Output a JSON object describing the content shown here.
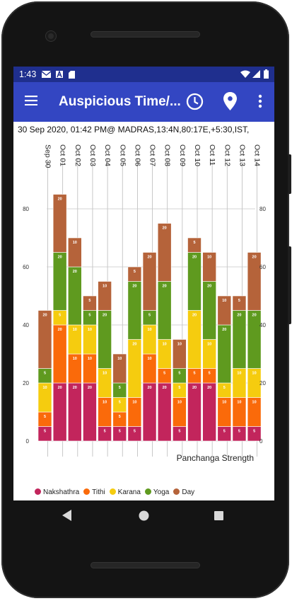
{
  "status_bar": {
    "time": "1:43",
    "icons": [
      "gmail-icon",
      "text-a-icon",
      "sd-card-icon",
      "wifi-icon",
      "signal-icon",
      "battery-icon"
    ],
    "color": "#1f2f8e"
  },
  "app_bar": {
    "menu_icon": "hamburger-menu-icon",
    "title": "Auspicious Time/...",
    "actions": [
      "clock-icon",
      "location-pin-icon",
      "overflow-menu-icon"
    ],
    "color": "#3346c2"
  },
  "subheader": "30 Sep 2020, 01:42 PM@ MADRAS,13:4N,80:17E,+5:30,IST,",
  "chart_data": {
    "type": "bar",
    "stacked": true,
    "categories": [
      "Sep 30",
      "Oct 01",
      "Oct 02",
      "Oct 03",
      "Oct 04",
      "Oct 05",
      "Oct 06",
      "Oct 07",
      "Oct 08",
      "Oct 09",
      "Oct 10",
      "Oct 11",
      "Oct 12",
      "Oct 13",
      "Oct 14"
    ],
    "series": [
      {
        "name": "Nakshathra",
        "color": "#c2255c",
        "values": [
          5,
          20,
          20,
          20,
          5,
          5,
          5,
          20,
          20,
          5,
          20,
          20,
          5,
          5,
          5
        ]
      },
      {
        "name": "Tithi",
        "color": "#fa6a0a",
        "values": [
          5,
          20,
          10,
          10,
          10,
          5,
          10,
          10,
          5,
          10,
          5,
          5,
          10,
          10,
          10
        ]
      },
      {
        "name": "Karana",
        "color": "#f5cc0f",
        "values": [
          10,
          5,
          10,
          10,
          10,
          5,
          20,
          10,
          10,
          5,
          20,
          10,
          5,
          10,
          10
        ]
      },
      {
        "name": "Yoga",
        "color": "#5f9a1f",
        "values": [
          5,
          20,
          20,
          5,
          20,
          5,
          20,
          5,
          20,
          5,
          20,
          20,
          20,
          20,
          20
        ]
      },
      {
        "name": "Day",
        "color": "#b5633a",
        "values": [
          20,
          20,
          10,
          5,
          10,
          10,
          5,
          20,
          20,
          10,
          5,
          10,
          10,
          5,
          20
        ]
      }
    ],
    "y_ticks": [
      "0",
      "20",
      "40",
      "60",
      "80"
    ],
    "ylim": [
      0,
      90
    ],
    "grid": true,
    "xlabel": "Panchanga Strength",
    "legend_position": "bottom-left"
  },
  "nav_bar": {
    "buttons": [
      "back-icon",
      "home-icon",
      "recents-icon"
    ]
  }
}
